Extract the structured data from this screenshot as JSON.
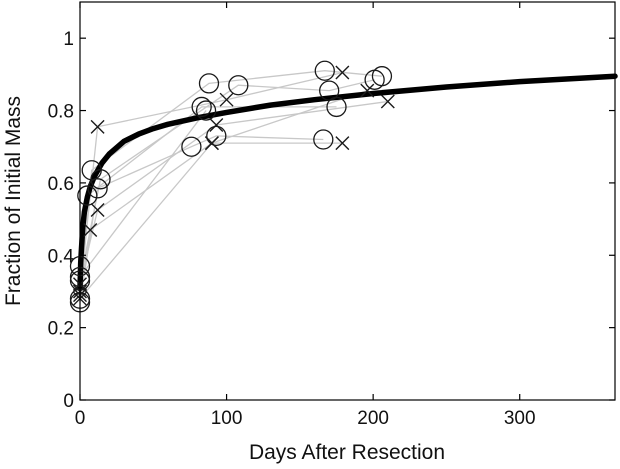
{
  "chart_data": {
    "type": "scatter",
    "xlabel": "Days After Resection",
    "ylabel": "Fraction of Initial Mass",
    "xlim": [
      0,
      365
    ],
    "ylim": [
      0,
      1.1
    ],
    "xticks": [
      0,
      100,
      200,
      300
    ],
    "yticks": [
      0,
      0.2,
      0.4,
      0.6,
      0.8,
      1
    ],
    "xtick_labels": [
      "0",
      "100",
      "200",
      "300"
    ],
    "ytick_labels": [
      "0",
      "0.2",
      "0.4",
      "0.6",
      "0.8",
      "1"
    ],
    "grid": false,
    "legend": "none",
    "colors": {
      "fit": "#000000",
      "connector": "#c8c8c8",
      "marker": "#1a1a1a"
    },
    "fit_curve": {
      "x": [
        0,
        0.5,
        1,
        2,
        3,
        5,
        7,
        10,
        15,
        20,
        30,
        40,
        50,
        60,
        80,
        100,
        130,
        160,
        200,
        250,
        300,
        365
      ],
      "y": [
        0.31,
        0.38,
        0.42,
        0.48,
        0.52,
        0.56,
        0.59,
        0.62,
        0.655,
        0.68,
        0.715,
        0.735,
        0.75,
        0.762,
        0.78,
        0.795,
        0.815,
        0.83,
        0.847,
        0.865,
        0.88,
        0.895
      ]
    },
    "series": [
      {
        "marker": "circle",
        "points": [
          [
            0,
            0.28
          ],
          [
            8,
            0.635
          ],
          [
            88,
            0.875
          ],
          [
            167,
            0.91
          ],
          [
            206,
            0.895
          ]
        ]
      },
      {
        "marker": "circle",
        "points": [
          [
            0,
            0.33
          ],
          [
            14,
            0.61
          ],
          [
            108,
            0.87
          ],
          [
            170,
            0.855
          ],
          [
            201,
            0.885
          ]
        ]
      },
      {
        "marker": "circle",
        "points": [
          [
            0,
            0.37
          ],
          [
            5,
            0.565
          ],
          [
            83,
            0.81
          ],
          [
            175,
            0.81
          ]
        ]
      },
      {
        "marker": "circle",
        "points": [
          [
            0,
            0.27
          ],
          [
            12,
            0.585
          ],
          [
            76,
            0.7
          ],
          [
            93,
            0.73
          ],
          [
            166,
            0.72
          ]
        ]
      },
      {
        "marker": "circle",
        "points": [
          [
            0,
            0.34
          ],
          [
            86,
            0.8
          ]
        ]
      },
      {
        "marker": "cross",
        "points": [
          [
            0,
            0.3
          ],
          [
            12,
            0.755
          ],
          [
            100,
            0.83
          ],
          [
            179,
            0.905
          ]
        ]
      },
      {
        "marker": "cross",
        "points": [
          [
            0,
            0.29
          ],
          [
            7,
            0.47
          ],
          [
            90,
            0.71
          ],
          [
            196,
            0.855
          ]
        ]
      },
      {
        "marker": "cross",
        "points": [
          [
            0,
            0.32
          ],
          [
            12,
            0.525
          ],
          [
            93,
            0.76
          ],
          [
            210,
            0.825
          ]
        ]
      },
      {
        "marker": "cross",
        "points": [
          [
            0,
            0.28
          ],
          [
            90,
            0.71
          ],
          [
            179,
            0.71
          ]
        ]
      }
    ]
  }
}
